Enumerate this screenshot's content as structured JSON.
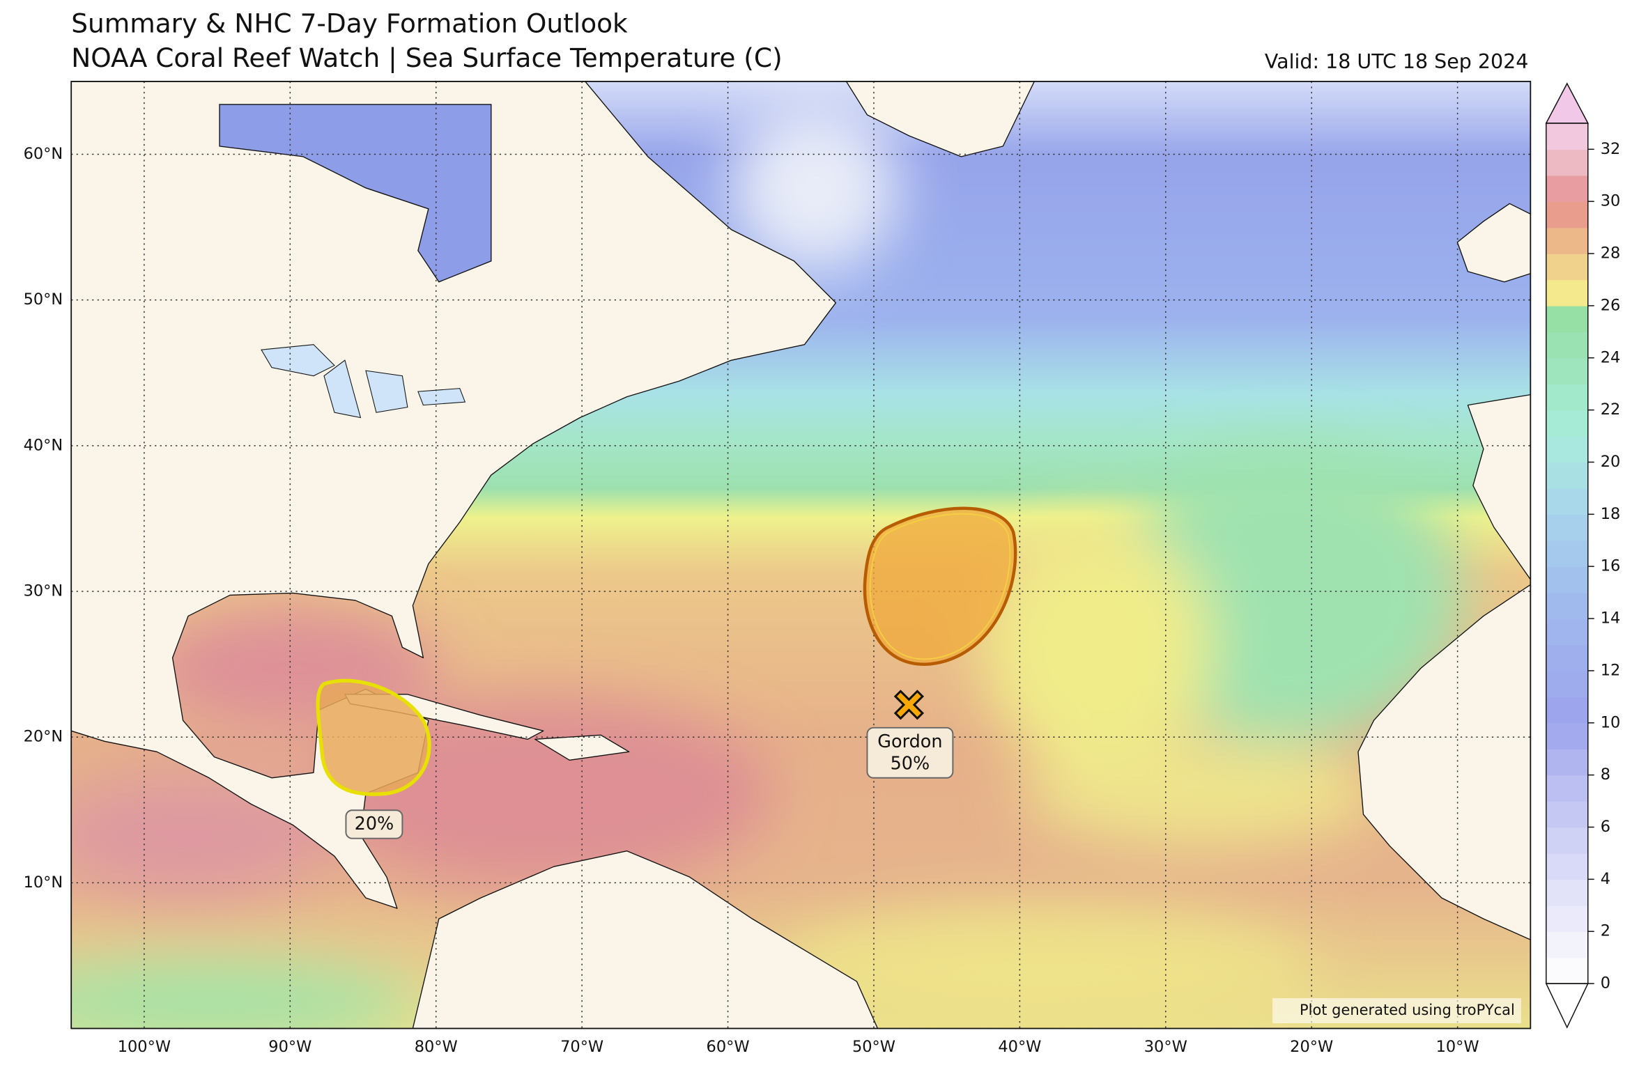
{
  "header": {
    "title": "Summary & NHC 7-Day Formation Outlook",
    "subtitle": "NOAA Coral Reef Watch | Sea Surface Temperature (C)",
    "valid": "Valid: 18 UTC 18 Sep 2024"
  },
  "map": {
    "lon_range": [
      -105,
      -5
    ],
    "lat_range": [
      0,
      65
    ],
    "lat_ticks": [
      {
        "value": 10,
        "label": "10°N"
      },
      {
        "value": 20,
        "label": "20°N"
      },
      {
        "value": 30,
        "label": "30°N"
      },
      {
        "value": 40,
        "label": "40°N"
      },
      {
        "value": 50,
        "label": "50°N"
      },
      {
        "value": 60,
        "label": "60°N"
      }
    ],
    "lon_ticks": [
      {
        "value": -100,
        "label": "100°W"
      },
      {
        "value": -90,
        "label": "90°W"
      },
      {
        "value": -80,
        "label": "80°W"
      },
      {
        "value": -70,
        "label": "70°W"
      },
      {
        "value": -60,
        "label": "60°W"
      },
      {
        "value": -50,
        "label": "50°W"
      },
      {
        "value": -40,
        "label": "40°W"
      },
      {
        "value": -30,
        "label": "30°W"
      },
      {
        "value": -20,
        "label": "20°W"
      },
      {
        "value": -10,
        "label": "10°W"
      }
    ]
  },
  "colorbar": {
    "range": [
      0,
      33
    ],
    "ticks": [
      0,
      2,
      4,
      6,
      8,
      10,
      12,
      14,
      16,
      18,
      20,
      22,
      24,
      26,
      28,
      30,
      32
    ]
  },
  "annotations": [
    {
      "name": "Gordon",
      "chance": "50%"
    },
    {
      "chance": "20%"
    }
  ],
  "credit": "Plot generated using troPYcal"
}
